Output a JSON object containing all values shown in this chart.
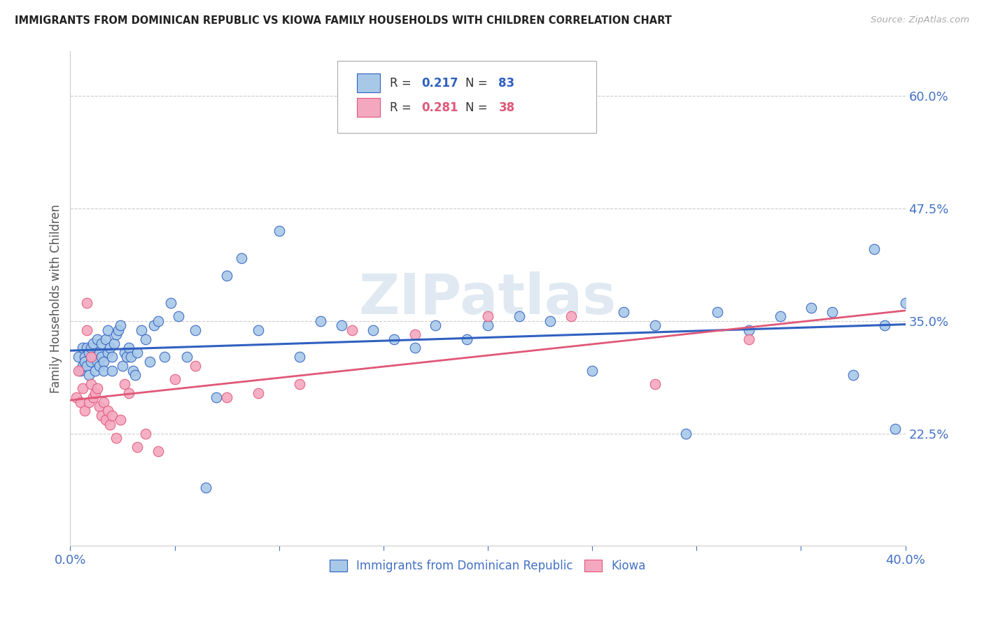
{
  "title": "IMMIGRANTS FROM DOMINICAN REPUBLIC VS KIOWA FAMILY HOUSEHOLDS WITH CHILDREN CORRELATION CHART",
  "source": "Source: ZipAtlas.com",
  "ylabel": "Family Households with Children",
  "xlim": [
    0.0,
    0.4
  ],
  "ylim": [
    0.1,
    0.65
  ],
  "yticks": [
    0.225,
    0.35,
    0.475,
    0.6
  ],
  "ytick_labels": [
    "22.5%",
    "35.0%",
    "47.5%",
    "60.0%"
  ],
  "xticks": [
    0.0,
    0.05,
    0.1,
    0.15,
    0.2,
    0.25,
    0.3,
    0.35,
    0.4
  ],
  "xtick_labels": [
    "0.0%",
    "",
    "",
    "",
    "",
    "",
    "",
    "",
    "40.0%"
  ],
  "series1_color": "#a8c8e8",
  "series2_color": "#f4a8c0",
  "line1_color": "#3060c0",
  "line2_color": "#e05878",
  "R1": 0.217,
  "N1": 83,
  "R2": 0.281,
  "N2": 38,
  "legend_label1": "Immigrants from Dominican Republic",
  "legend_label2": "Kiowa",
  "watermark": "ZIPatlas",
  "axis_color": "#4472c4",
  "background_color": "#ffffff",
  "series1_x": [
    0.004,
    0.005,
    0.006,
    0.006,
    0.007,
    0.007,
    0.008,
    0.008,
    0.009,
    0.009,
    0.01,
    0.01,
    0.011,
    0.011,
    0.012,
    0.012,
    0.013,
    0.013,
    0.014,
    0.014,
    0.015,
    0.015,
    0.016,
    0.016,
    0.017,
    0.018,
    0.018,
    0.019,
    0.02,
    0.02,
    0.021,
    0.022,
    0.023,
    0.024,
    0.025,
    0.026,
    0.027,
    0.028,
    0.029,
    0.03,
    0.031,
    0.032,
    0.034,
    0.036,
    0.038,
    0.04,
    0.042,
    0.045,
    0.048,
    0.052,
    0.056,
    0.06,
    0.065,
    0.07,
    0.075,
    0.082,
    0.09,
    0.1,
    0.11,
    0.12,
    0.13,
    0.145,
    0.155,
    0.165,
    0.175,
    0.19,
    0.2,
    0.215,
    0.23,
    0.25,
    0.265,
    0.28,
    0.295,
    0.31,
    0.325,
    0.34,
    0.355,
    0.365,
    0.375,
    0.385,
    0.39,
    0.395,
    0.4
  ],
  "series1_y": [
    0.31,
    0.295,
    0.3,
    0.32,
    0.31,
    0.305,
    0.3,
    0.32,
    0.29,
    0.315,
    0.305,
    0.32,
    0.31,
    0.325,
    0.295,
    0.31,
    0.305,
    0.33,
    0.3,
    0.315,
    0.31,
    0.325,
    0.305,
    0.295,
    0.33,
    0.34,
    0.315,
    0.32,
    0.31,
    0.295,
    0.325,
    0.335,
    0.34,
    0.345,
    0.3,
    0.315,
    0.31,
    0.32,
    0.31,
    0.295,
    0.29,
    0.315,
    0.34,
    0.33,
    0.305,
    0.345,
    0.35,
    0.31,
    0.37,
    0.355,
    0.31,
    0.34,
    0.165,
    0.265,
    0.4,
    0.42,
    0.34,
    0.45,
    0.31,
    0.35,
    0.345,
    0.34,
    0.33,
    0.32,
    0.345,
    0.33,
    0.345,
    0.355,
    0.35,
    0.295,
    0.36,
    0.345,
    0.225,
    0.36,
    0.34,
    0.355,
    0.365,
    0.36,
    0.29,
    0.43,
    0.345,
    0.23,
    0.37
  ],
  "series2_x": [
    0.003,
    0.004,
    0.005,
    0.006,
    0.007,
    0.008,
    0.008,
    0.009,
    0.01,
    0.01,
    0.011,
    0.012,
    0.013,
    0.014,
    0.015,
    0.016,
    0.017,
    0.018,
    0.019,
    0.02,
    0.022,
    0.024,
    0.026,
    0.028,
    0.032,
    0.036,
    0.042,
    0.05,
    0.06,
    0.075,
    0.09,
    0.11,
    0.135,
    0.165,
    0.2,
    0.24,
    0.28,
    0.325
  ],
  "series2_y": [
    0.265,
    0.295,
    0.26,
    0.275,
    0.25,
    0.37,
    0.34,
    0.26,
    0.28,
    0.31,
    0.265,
    0.27,
    0.275,
    0.255,
    0.245,
    0.26,
    0.24,
    0.25,
    0.235,
    0.245,
    0.22,
    0.24,
    0.28,
    0.27,
    0.21,
    0.225,
    0.205,
    0.285,
    0.3,
    0.265,
    0.27,
    0.28,
    0.34,
    0.335,
    0.355,
    0.355,
    0.28,
    0.33
  ]
}
